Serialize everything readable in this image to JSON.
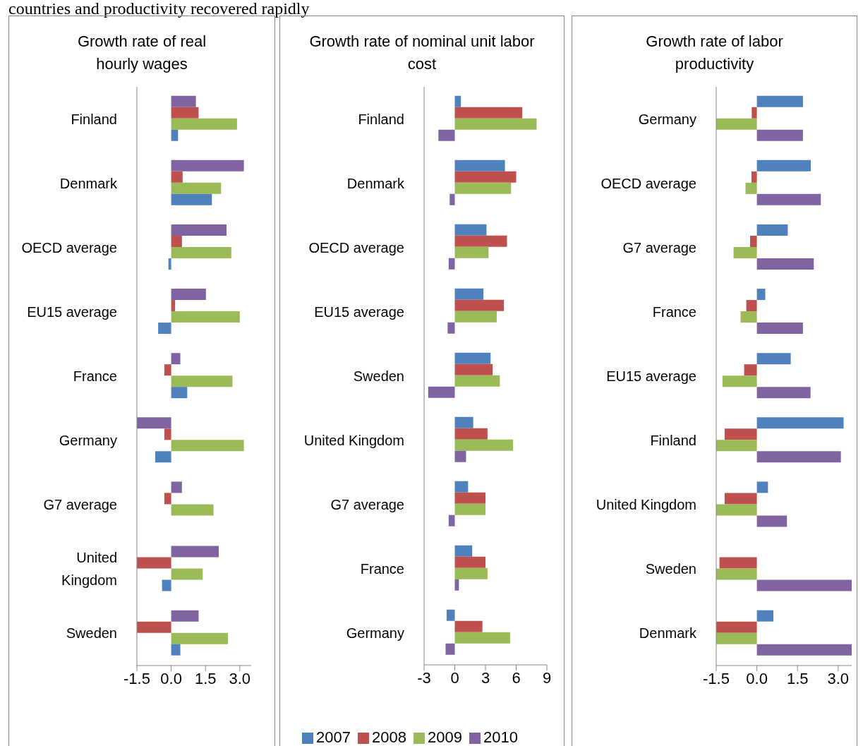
{
  "chart_data": [
    {
      "type": "bar",
      "orientation": "horizontal",
      "title": "Growth rate of real hourly wages",
      "annotations": [
        "countries and productivity recovered rapidly"
      ],
      "categories": [
        "Finland",
        "Denmark",
        "OECD average",
        "EU15 average",
        "France",
        "Germany",
        "G7 average",
        "United Kingdom",
        "Sweden"
      ],
      "xlim": [
        -1.5,
        3.5
      ],
      "xticks": [
        {
          "value": -1.5,
          "label": "-1.5"
        },
        {
          "value": 0,
          "label": "0.0"
        },
        {
          "value": 1.5,
          "label": "1.5"
        },
        {
          "value": 3,
          "label": "3.0"
        }
      ],
      "legend": false,
      "grid": false,
      "series": [
        {
          "color": "#8064a2",
          "values": [
            1.08,
            3.18,
            2.42,
            1.52,
            0.4,
            -1.5,
            0.47,
            2.08,
            1.2
          ]
        },
        {
          "color": "#c0504d",
          "values": [
            1.2,
            0.5,
            0.47,
            0.17,
            -0.3,
            -0.3,
            -0.3,
            -1.5,
            -1.5
          ]
        },
        {
          "color": "#9bbb59",
          "values": [
            2.88,
            2.18,
            2.63,
            3.0,
            2.68,
            3.18,
            1.85,
            1.38,
            2.48
          ]
        },
        {
          "color": "#4f81bd",
          "values": [
            0.3,
            1.78,
            -0.12,
            -0.57,
            0.7,
            -0.7,
            null,
            -0.4,
            0.4
          ]
        }
      ]
    },
    {
      "type": "bar",
      "orientation": "horizontal",
      "title": "Growth rate of nominal unit labor cost",
      "categories": [
        "Finland",
        "Denmark",
        "OECD average",
        "EU15 average",
        "Sweden",
        "United Kingdom",
        "G7 average",
        "France",
        "Germany"
      ],
      "xlim": [
        -3,
        9
      ],
      "xticks": [
        -3,
        0,
        3,
        6,
        9
      ],
      "legend": "bottom",
      "grid": false,
      "series": [
        {
          "name": "2007",
          "color": "#4f81bd",
          "values": [
            0.6,
            4.9,
            3.1,
            2.8,
            3.5,
            1.8,
            1.3,
            1.7,
            -0.8
          ]
        },
        {
          "name": "2008",
          "color": "#c0504d",
          "values": [
            6.6,
            6.0,
            5.1,
            4.8,
            3.7,
            3.2,
            3.0,
            3.0,
            2.7
          ]
        },
        {
          "name": "2009",
          "color": "#9bbb59",
          "values": [
            8.0,
            5.5,
            3.3,
            4.1,
            4.4,
            5.7,
            3.0,
            3.2,
            5.4
          ]
        },
        {
          "name": "2010",
          "color": "#8064a2",
          "values": [
            -1.6,
            -0.5,
            -0.6,
            -0.7,
            -2.6,
            1.1,
            -0.6,
            0.4,
            -0.9
          ]
        }
      ]
    },
    {
      "type": "bar",
      "orientation": "horizontal",
      "title": "Growth rate of labor productivity",
      "categories": [
        "Germany",
        "OECD average",
        "G7 average",
        "France",
        "EU15 average",
        "Finland",
        "United Kingdom",
        "Sweden",
        "Denmark"
      ],
      "xlim": [
        -1.5,
        3.5
      ],
      "xticks": [
        {
          "value": -1.5,
          "label": "-1.5"
        },
        {
          "value": 0,
          "label": "0.0"
        },
        {
          "value": 1.5,
          "label": "1.5"
        },
        {
          "value": 3,
          "label": "3.0"
        }
      ],
      "legend": false,
      "grid": false,
      "series": [
        {
          "color": "#4f81bd",
          "values": [
            1.7,
            1.99,
            1.14,
            0.31,
            1.25,
            3.2,
            0.41,
            null,
            0.61
          ]
        },
        {
          "color": "#c0504d",
          "values": [
            -0.19,
            -0.2,
            -0.25,
            -0.39,
            -0.47,
            -1.19,
            -1.19,
            -1.38,
            -1.5
          ]
        },
        {
          "color": "#9bbb59",
          "values": [
            -1.5,
            -0.42,
            -0.86,
            -0.6,
            -1.27,
            -1.5,
            -1.5,
            -1.5,
            -1.5
          ]
        },
        {
          "color": "#8064a2",
          "values": [
            1.7,
            2.36,
            2.1,
            1.7,
            1.98,
            3.1,
            1.11,
            3.5,
            3.5
          ]
        }
      ]
    }
  ]
}
